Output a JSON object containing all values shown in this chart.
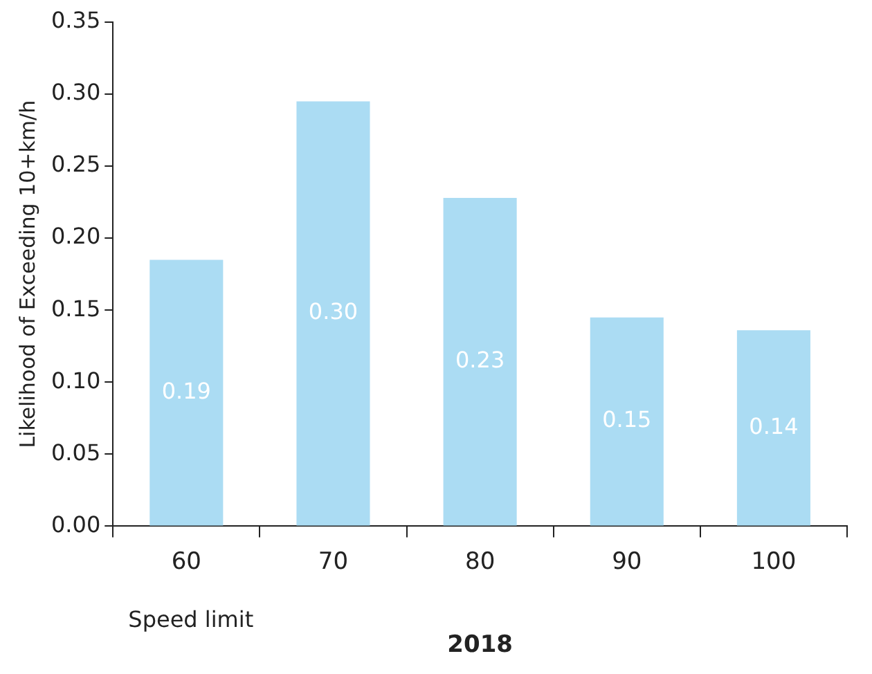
{
  "chart_data": {
    "type": "bar",
    "xlabel": "2018",
    "ylabel": "Likelihood of Exceeding 10+km/h",
    "categories": [
      "60",
      "70",
      "80",
      "90",
      "100"
    ],
    "values": [
      0.185,
      0.295,
      0.228,
      0.145,
      0.136
    ],
    "value_labels": [
      "0.19",
      "0.30",
      "0.23",
      "0.15",
      "0.14"
    ],
    "color": "#abdcf3",
    "ylim": [
      0,
      0.35
    ],
    "yticks": [
      {
        "value": 0,
        "label": "0.00"
      },
      {
        "value": 0.05,
        "label": "0.05"
      },
      {
        "value": 0.1,
        "label": "0.10"
      },
      {
        "value": 0.15,
        "label": "0.15"
      },
      {
        "value": 0.2,
        "label": "0.20"
      },
      {
        "value": 0.25,
        "label": "0.25"
      },
      {
        "value": 0.3,
        "label": "0.30"
      },
      {
        "value": 0.35,
        "label": "0.35"
      }
    ],
    "annotations": [
      "Speed limit"
    ],
    "grid": false,
    "legend": false
  }
}
